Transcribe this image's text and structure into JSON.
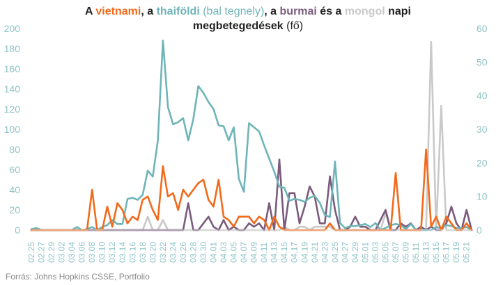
{
  "title": {
    "p1": "A ",
    "vn": "vietnami",
    "p2": ", a ",
    "th": "thaiföldi",
    "th_note": " (bal tegnely)",
    "p3": ", a ",
    "mm": "burmai",
    "p4": " és a ",
    "mn": "mongol",
    "p5": " napi",
    "line2": "megbetegedések",
    "unit": " (fő)"
  },
  "source": "Forrás: Johns Hopkins CSSE, Portfolio",
  "colors": {
    "vietnam": "#f26a1b",
    "thailand": "#6fb4b8",
    "burma": "#7a5b7c",
    "mongolia": "#c9c9c9",
    "axis_text": "#8ec3c6",
    "grid": "#e6e6e6"
  },
  "chart_data": {
    "type": "line",
    "title": "A vietnami, a thaiföldi (bal tegnely), a burmai és a mongol napi megbetegedések (fő)",
    "x": [
      "02.25",
      "02.26",
      "02.27",
      "02.28",
      "02.29",
      "03.01",
      "03.02",
      "03.03",
      "03.04",
      "03.05",
      "03.06",
      "03.07",
      "03.08",
      "03.09",
      "03.10",
      "03.11",
      "03.12",
      "03.13",
      "03.14",
      "03.15",
      "03.16",
      "03.17",
      "03.18",
      "03.19",
      "03.20",
      "03.21",
      "03.22",
      "03.23",
      "03.24",
      "03.25",
      "03.26",
      "03.27",
      "03.28",
      "03.29",
      "03.30",
      "03.31",
      "04.01",
      "04.02",
      "04.03",
      "04.04",
      "04.05",
      "04.06",
      "04.07",
      "04.08",
      "04.09",
      "04.10",
      "04.11",
      "04.12",
      "04.13",
      "04.14",
      "04.15",
      "04.16",
      "04.17",
      "04.18",
      "04.19",
      "04.20",
      "04.21",
      "04.22",
      "04.23",
      "04.24",
      "04.25",
      "04.26",
      "04.27",
      "04.28",
      "04.29",
      "04.30",
      "05.01",
      "05.02",
      "05.03",
      "05.04",
      "05.05",
      "05.06",
      "05.07",
      "05.08",
      "05.09",
      "05.10",
      "05.11",
      "05.12",
      "05.13",
      "05.14",
      "05.15",
      "05.16",
      "05.17",
      "05.18",
      "05.19",
      "05.20",
      "05.21",
      "05.22"
    ],
    "x_tick_labels": [
      "02.25",
      "02.27",
      "02.29",
      "03.02",
      "03.04",
      "03.06",
      "03.08",
      "03.10",
      "03.12",
      "03.14",
      "03.16",
      "03.18",
      "03.20",
      "03.22",
      "03.24",
      "03.26",
      "03.28",
      "03.30",
      "04.01",
      "04.03",
      "04.05",
      "04.07",
      "04.09",
      "04.11",
      "04.13",
      "04.15",
      "04.17",
      "04.19",
      "04.21",
      "04.23",
      "04.25",
      "04.27",
      "04.29",
      "05.01",
      "05.03",
      "05.05",
      "05.07",
      "05.09",
      "05.11",
      "05.13",
      "05.15",
      "05.17",
      "05.19",
      "05.21"
    ],
    "y_left_ticks": [
      0,
      20,
      40,
      60,
      80,
      100,
      120,
      140,
      160,
      180,
      200
    ],
    "y_right_ticks": [
      0,
      10,
      20,
      30,
      40,
      50,
      60
    ],
    "ylim_left": [
      0,
      200
    ],
    "ylim_right": [
      0,
      60
    ],
    "grid": false,
    "series": [
      {
        "name": "thaiföldi",
        "axis": "left",
        "values": [
          1,
          2,
          0,
          0,
          0,
          0,
          0,
          0,
          0,
          3,
          0,
          1,
          3,
          0,
          3,
          5,
          10,
          6,
          6,
          31,
          32,
          30,
          35,
          59,
          53,
          89,
          188,
          122,
          105,
          107,
          111,
          89,
          110,
          143,
          136,
          127,
          120,
          104,
          103,
          89,
          102,
          51,
          38,
          106,
          102,
          98,
          84,
          71,
          58,
          43,
          42,
          29,
          31,
          30,
          28,
          32,
          34,
          27,
          15,
          13,
          68,
          7,
          2,
          4,
          4,
          5,
          6,
          3,
          7,
          0,
          2,
          5,
          6,
          5,
          1,
          6,
          0,
          0,
          0,
          0,
          3,
          2,
          5,
          4,
          2,
          2,
          3,
          0
        ]
      },
      {
        "name": "vietnami",
        "axis": "right",
        "values": [
          0,
          0,
          0,
          0,
          0,
          0,
          0,
          0,
          0,
          0,
          0,
          0,
          12,
          0,
          0,
          7,
          1,
          8,
          6,
          2,
          4,
          3,
          9,
          10,
          6,
          3,
          19,
          10,
          11,
          6,
          12,
          10,
          12,
          14,
          15,
          9,
          7,
          15,
          4,
          3,
          1,
          4,
          4,
          4,
          2,
          4,
          3,
          0,
          4,
          1,
          0,
          0,
          0,
          0,
          0,
          0,
          0,
          0,
          0,
          2,
          0,
          0,
          0,
          0,
          0,
          0,
          0,
          0,
          0,
          0,
          0,
          0,
          17,
          0,
          0,
          0,
          0,
          0,
          24,
          1,
          4,
          0,
          4,
          2,
          0,
          0,
          2,
          0
        ]
      },
      {
        "name": "burmai",
        "axis": "right",
        "values": [
          0,
          0,
          0,
          0,
          0,
          0,
          0,
          0,
          0,
          0,
          0,
          0,
          0,
          0,
          0,
          0,
          0,
          0,
          0,
          0,
          0,
          0,
          0,
          0,
          0,
          0,
          0,
          0,
          0,
          0,
          0,
          8,
          0,
          0,
          2,
          4,
          1,
          0,
          3,
          0,
          1,
          0,
          0,
          2,
          1,
          2,
          0,
          8,
          0,
          21,
          0,
          11,
          11,
          2,
          7,
          13,
          10,
          2,
          2,
          16,
          6,
          0,
          0,
          1,
          4,
          1,
          1,
          0,
          0,
          3,
          6,
          0,
          0,
          2,
          1,
          2,
          0,
          1,
          0,
          1,
          0,
          0,
          2,
          7,
          2,
          0,
          6,
          0
        ]
      },
      {
        "name": "mongol",
        "axis": "right",
        "values": [
          0,
          0,
          0,
          0,
          0,
          0,
          0,
          0,
          0,
          0,
          0,
          0,
          0,
          0,
          0,
          0,
          0,
          0,
          0,
          0,
          0,
          0,
          0,
          4,
          0,
          0,
          3,
          0,
          0,
          0,
          0,
          0,
          0,
          0,
          0,
          0,
          0,
          0,
          0,
          0,
          0,
          0,
          0,
          0,
          0,
          0,
          0,
          0,
          0,
          0,
          1,
          0,
          0,
          1,
          1,
          0,
          1,
          1,
          1,
          1,
          0,
          0,
          0,
          0,
          0,
          0,
          0,
          0,
          0,
          0,
          5,
          0,
          0,
          0,
          0,
          0,
          0,
          0,
          0,
          56,
          0,
          37,
          0,
          0,
          0,
          0,
          0,
          0
        ]
      }
    ]
  }
}
